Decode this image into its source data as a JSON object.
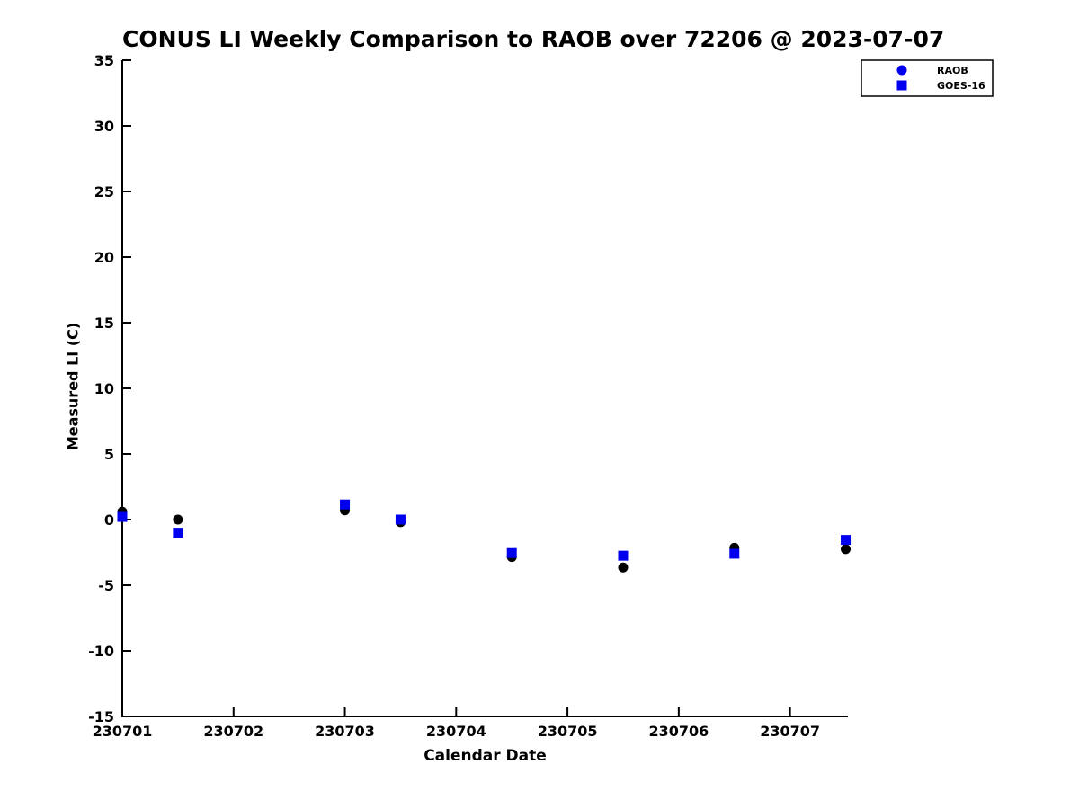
{
  "page": {
    "background": "#ffffff"
  },
  "chart_data": {
    "type": "scatter",
    "title": "CONUS LI Weekly Comparison to RAOB over 72206 @ 2023-07-07",
    "xlabel": "Calendar Date",
    "ylabel": "Measured LI (C)",
    "xlim": [
      230701,
      230707.52
    ],
    "ylim": [
      -15,
      35
    ],
    "x_tick_values": [
      230701,
      230702,
      230703,
      230704,
      230705,
      230706,
      230707
    ],
    "x_tick_labels": [
      "230701",
      "230702",
      "230703",
      "230704",
      "230705",
      "230706",
      "230707"
    ],
    "y_tick_values": [
      -15,
      -10,
      -5,
      0,
      5,
      10,
      15,
      20,
      25,
      30,
      35
    ],
    "y_tick_labels": [
      "-15",
      "-10",
      "-5",
      "0",
      "5",
      "10",
      "15",
      "20",
      "25",
      "30",
      "35"
    ],
    "grid": false,
    "axis_color": "#000000",
    "x": [
      230701.0,
      230701.5,
      230703.0,
      230703.5,
      230704.5,
      230705.5,
      230706.5,
      230707.5
    ],
    "series": [
      {
        "name": "RAOB",
        "marker": "circle",
        "marker_color": "#000000",
        "legend_marker_color": "#0000ee",
        "values": [
          0.6,
          0.0,
          0.7,
          -0.2,
          -2.85,
          -3.65,
          -2.15,
          -2.25
        ]
      },
      {
        "name": "GOES-16",
        "marker": "square",
        "marker_color": "#0000ee",
        "legend_marker_color": "#0000ee",
        "values": [
          0.2,
          -1.0,
          1.15,
          0.0,
          -2.55,
          -2.75,
          -2.6,
          -1.55
        ]
      }
    ],
    "legend": {
      "position": "top-right-outside",
      "entries": [
        "RAOB",
        "GOES-16"
      ]
    }
  }
}
